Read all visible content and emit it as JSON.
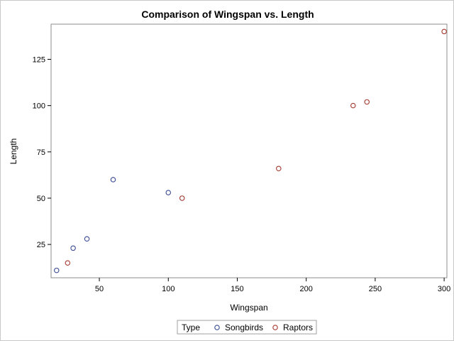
{
  "chart_data": {
    "type": "scatter",
    "title": "Comparison of Wingspan vs. Length",
    "xlabel": "Wingspan",
    "ylabel": "Length",
    "xlim": [
      15,
      302
    ],
    "ylim": [
      7,
      144
    ],
    "xticks": [
      50,
      100,
      150,
      200,
      250,
      300
    ],
    "yticks": [
      25,
      50,
      75,
      100,
      125
    ],
    "grid": false,
    "legend": {
      "title": "Type",
      "placement": "bottom-center"
    },
    "series": [
      {
        "name": "Songbirds",
        "color": "#3b4b95",
        "marker": "circle-open",
        "points": [
          {
            "x": 19,
            "y": 11
          },
          {
            "x": 31,
            "y": 23
          },
          {
            "x": 41,
            "y": 28
          },
          {
            "x": 60,
            "y": 60
          },
          {
            "x": 100,
            "y": 53
          }
        ]
      },
      {
        "name": "Raptors",
        "color": "#a33a2f",
        "marker": "circle-open",
        "points": [
          {
            "x": 27,
            "y": 15
          },
          {
            "x": 110,
            "y": 50
          },
          {
            "x": 180,
            "y": 66
          },
          {
            "x": 234,
            "y": 100
          },
          {
            "x": 244,
            "y": 102
          },
          {
            "x": 300,
            "y": 140
          }
        ]
      }
    ]
  }
}
